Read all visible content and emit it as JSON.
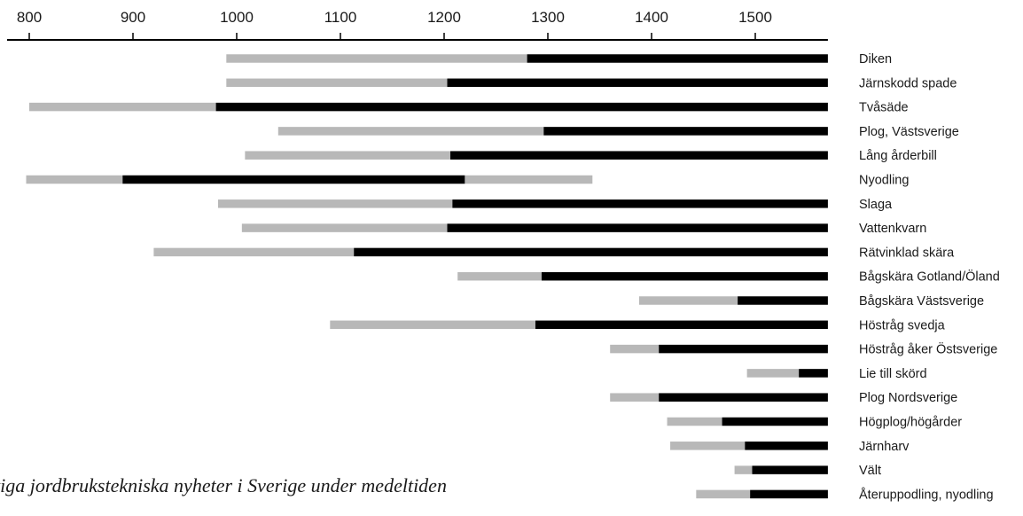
{
  "chart_data": {
    "type": "bar",
    "orientation": "horizontal",
    "subtype": "timeline-range",
    "xlim": [
      775,
      1570
    ],
    "x_ticks": [
      "800",
      "900",
      "1000",
      "1100",
      "1200",
      "1300",
      "1400",
      "1500"
    ],
    "legend": "none",
    "grid": false,
    "colors": {
      "early_phase": "#b8b8b8",
      "established_phase": "#000000"
    },
    "caption": "tiga jordbrukstekniska nyheter i Sverige under medeltiden",
    "rows": [
      {
        "label": "Diken",
        "segments": [
          {
            "phase": "early",
            "start": 990,
            "end": 1280
          },
          {
            "phase": "established",
            "start": 1280,
            "end": 1570
          }
        ]
      },
      {
        "label": "Järnskodd spade",
        "segments": [
          {
            "phase": "early",
            "start": 990,
            "end": 1203
          },
          {
            "phase": "established",
            "start": 1203,
            "end": 1570
          }
        ]
      },
      {
        "label": "Tvåsäde",
        "segments": [
          {
            "phase": "early",
            "start": 800,
            "end": 980
          },
          {
            "phase": "established",
            "start": 980,
            "end": 1570
          }
        ]
      },
      {
        "label": "Plog, Västsverige",
        "segments": [
          {
            "phase": "early",
            "start": 1040,
            "end": 1296
          },
          {
            "phase": "established",
            "start": 1296,
            "end": 1570
          }
        ]
      },
      {
        "label": "Lång årderbill",
        "segments": [
          {
            "phase": "early",
            "start": 1008,
            "end": 1206
          },
          {
            "phase": "established",
            "start": 1206,
            "end": 1570
          }
        ]
      },
      {
        "label": "Nyodling",
        "segments": [
          {
            "phase": "early",
            "start": 797,
            "end": 890
          },
          {
            "phase": "established",
            "start": 890,
            "end": 1220
          },
          {
            "phase": "early",
            "start": 1220,
            "end": 1343
          }
        ]
      },
      {
        "label": "Slaga",
        "segments": [
          {
            "phase": "early",
            "start": 982,
            "end": 1208
          },
          {
            "phase": "established",
            "start": 1208,
            "end": 1570
          }
        ]
      },
      {
        "label": "Vattenkvarn",
        "segments": [
          {
            "phase": "early",
            "start": 1005,
            "end": 1203
          },
          {
            "phase": "established",
            "start": 1203,
            "end": 1570
          }
        ]
      },
      {
        "label": "Rätvinklad skära",
        "segments": [
          {
            "phase": "early",
            "start": 920,
            "end": 1113
          },
          {
            "phase": "established",
            "start": 1113,
            "end": 1570
          }
        ]
      },
      {
        "label": "Bågskära Gotland/Öland",
        "segments": [
          {
            "phase": "early",
            "start": 1213,
            "end": 1294
          },
          {
            "phase": "established",
            "start": 1294,
            "end": 1570
          }
        ]
      },
      {
        "label": "Bågskära Västsverige",
        "segments": [
          {
            "phase": "early",
            "start": 1388,
            "end": 1483
          },
          {
            "phase": "established",
            "start": 1483,
            "end": 1570
          }
        ]
      },
      {
        "label": "Höstråg svedja",
        "segments": [
          {
            "phase": "early",
            "start": 1090,
            "end": 1288
          },
          {
            "phase": "established",
            "start": 1288,
            "end": 1570
          }
        ]
      },
      {
        "label": "Höstråg åker Östsverige",
        "segments": [
          {
            "phase": "early",
            "start": 1360,
            "end": 1407
          },
          {
            "phase": "established",
            "start": 1407,
            "end": 1570
          }
        ]
      },
      {
        "label": "Lie till skörd",
        "segments": [
          {
            "phase": "early",
            "start": 1492,
            "end": 1542
          },
          {
            "phase": "established",
            "start": 1542,
            "end": 1570
          }
        ]
      },
      {
        "label": "Plog Nordsverige",
        "segments": [
          {
            "phase": "early",
            "start": 1360,
            "end": 1407
          },
          {
            "phase": "established",
            "start": 1407,
            "end": 1570
          }
        ]
      },
      {
        "label": "Högplog/högårder",
        "segments": [
          {
            "phase": "early",
            "start": 1415,
            "end": 1468
          },
          {
            "phase": "established",
            "start": 1468,
            "end": 1570
          }
        ]
      },
      {
        "label": "Järnharv",
        "segments": [
          {
            "phase": "early",
            "start": 1418,
            "end": 1490
          },
          {
            "phase": "established",
            "start": 1490,
            "end": 1570
          }
        ]
      },
      {
        "label": "Vält",
        "segments": [
          {
            "phase": "early",
            "start": 1480,
            "end": 1497
          },
          {
            "phase": "established",
            "start": 1497,
            "end": 1570
          }
        ]
      },
      {
        "label": "Återuppodling, nyodling",
        "segments": [
          {
            "phase": "early",
            "start": 1443,
            "end": 1495
          },
          {
            "phase": "established",
            "start": 1495,
            "end": 1570
          }
        ]
      }
    ]
  }
}
